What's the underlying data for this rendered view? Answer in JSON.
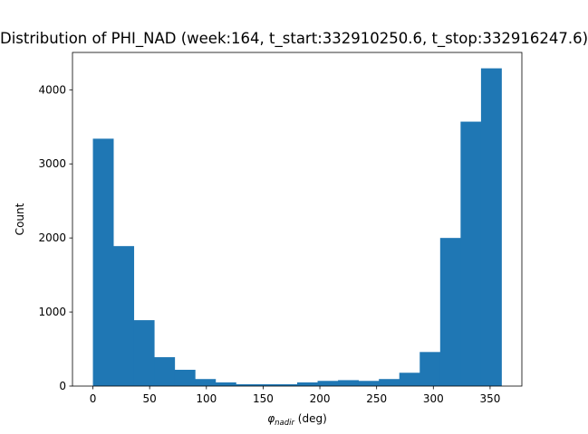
{
  "chart_data": {
    "type": "bar",
    "title": "Distribution of PHI_NAD (week:164, t_start:332910250.6, t_stop:332916247.6)",
    "xlabel": {
      "symbol": "φ",
      "subscript": "nadir",
      "suffix": " (deg)"
    },
    "ylabel": "Count",
    "bar_color": "#1f77b4",
    "bin_edges": [
      0,
      18,
      36,
      54,
      72,
      90,
      108,
      126,
      144,
      162,
      180,
      198,
      216,
      234,
      252,
      270,
      288,
      306,
      324,
      342,
      360
    ],
    "values": [
      3340,
      1890,
      890,
      390,
      220,
      95,
      50,
      25,
      25,
      25,
      50,
      70,
      80,
      70,
      95,
      180,
      460,
      2000,
      3570,
      4290
    ],
    "xlim": [
      -18,
      378
    ],
    "ylim": [
      0,
      4504.5
    ],
    "x_ticks": [
      0,
      50,
      100,
      150,
      200,
      250,
      300,
      350
    ],
    "y_ticks": [
      0,
      1000,
      2000,
      3000,
      4000
    ],
    "grid": false
  }
}
